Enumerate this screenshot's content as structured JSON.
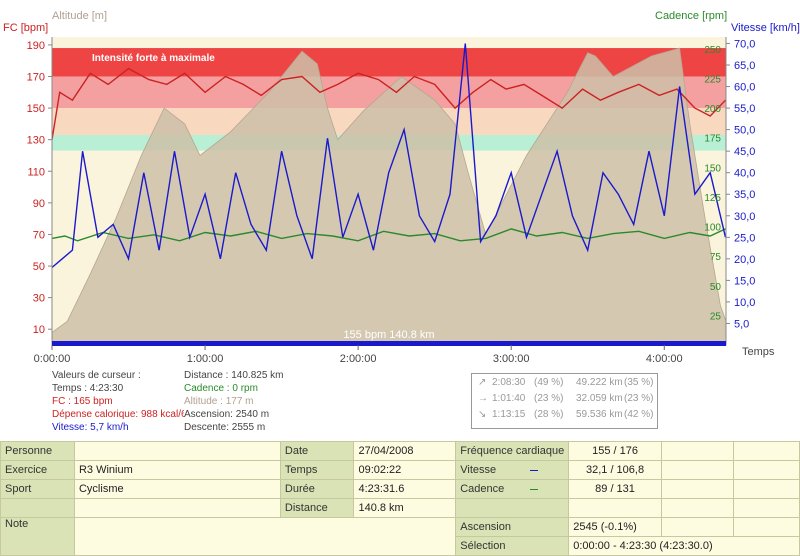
{
  "chart_data": {
    "type": "line",
    "x_ticks": [
      "0:00:00",
      "1:00:00",
      "2:00:00",
      "3:00:00",
      "4:00:00"
    ],
    "x_range_min": [
      0,
      264.2
    ],
    "xlabel": "Temps",
    "axes": {
      "fc": {
        "label": "FC [bpm]",
        "range": [
          0,
          195
        ],
        "ticks": [
          10,
          30,
          50,
          70,
          90,
          110,
          130,
          150,
          170,
          190
        ],
        "color": "#cc2222"
      },
      "altitude": {
        "label": "Altitude  [m]",
        "color": "#b0a090"
      },
      "cadence": {
        "label": "Cadence [rpm]",
        "range": [
          0,
          260
        ],
        "ticks": [
          25,
          50,
          75,
          100,
          125,
          150,
          175,
          200,
          225,
          250
        ],
        "color": "#2a8a2a"
      },
      "vitesse": {
        "label": "Vitesse [km/h]",
        "range": [
          0,
          71.5
        ],
        "ticks": [
          "5,0",
          "10,0",
          "15,0",
          "20,0",
          "25,0",
          "30,0",
          "35,0",
          "40,0",
          "45,0",
          "50,0",
          "55,0",
          "60,0",
          "65,0",
          "70,0"
        ],
        "color": "#1a1acc"
      }
    },
    "zones": [
      {
        "name": "Intensité forte à maximale",
        "fc_range": [
          170,
          188
        ],
        "color": "#ee4444"
      },
      {
        "name": "",
        "fc_range": [
          150,
          170
        ],
        "color": "#f5a0a0"
      },
      {
        "name": "",
        "fc_range": [
          133,
          150
        ],
        "color": "#f9d8c0"
      },
      {
        "name": "",
        "fc_range": [
          123,
          133
        ],
        "color": "#b9efd4"
      },
      {
        "name": "",
        "fc_range": [
          0,
          123
        ],
        "color": "#fbf4dc"
      }
    ],
    "series": [
      {
        "name": "Altitude",
        "axis": "fc",
        "color": "#cdbfa8",
        "x": [
          0,
          6,
          15,
          25,
          35,
          44,
          52,
          58,
          70,
          85,
          98,
          104,
          108,
          112,
          122,
          137,
          150,
          158,
          163,
          170,
          186,
          202,
          210,
          213,
          220,
          235,
          246,
          250,
          256,
          262,
          264.2
        ],
        "y": [
          8,
          15,
          45,
          80,
          120,
          150,
          140,
          120,
          135,
          160,
          186,
          178,
          150,
          130,
          148,
          170,
          155,
          140,
          110,
          70,
          120,
          160,
          185,
          183,
          170,
          183,
          188,
          140,
          80,
          25,
          15
        ]
      },
      {
        "name": "FC",
        "axis": "fc",
        "color": "#cc2222",
        "x": [
          0,
          3,
          8,
          15,
          22,
          30,
          38,
          45,
          52,
          60,
          68,
          75,
          82,
          90,
          98,
          105,
          112,
          120,
          128,
          135,
          142,
          150,
          158,
          165,
          172,
          178,
          185,
          192,
          200,
          208,
          215,
          222,
          230,
          238,
          245,
          252,
          258,
          264
        ],
        "y": [
          130,
          160,
          155,
          172,
          165,
          175,
          168,
          165,
          172,
          160,
          170,
          165,
          158,
          168,
          170,
          160,
          165,
          172,
          168,
          160,
          170,
          165,
          150,
          160,
          168,
          162,
          165,
          158,
          150,
          162,
          155,
          160,
          165,
          158,
          162,
          150,
          145,
          155
        ]
      },
      {
        "name": "Cadence",
        "axis": "cadence",
        "color": "#2a8a2a",
        "x": [
          0,
          5,
          10,
          20,
          30,
          40,
          50,
          60,
          70,
          80,
          90,
          100,
          110,
          120,
          130,
          140,
          150,
          160,
          170,
          180,
          190,
          200,
          210,
          220,
          230,
          240,
          250,
          258,
          264
        ],
        "y": [
          90,
          92,
          88,
          95,
          90,
          93,
          88,
          95,
          92,
          96,
          90,
          94,
          92,
          88,
          96,
          92,
          94,
          88,
          90,
          98,
          92,
          95,
          90,
          94,
          96,
          90,
          95,
          92,
          98
        ]
      },
      {
        "name": "Vitesse",
        "axis": "vitesse",
        "color": "#1a1acc",
        "x": [
          0,
          4,
          8,
          12,
          18,
          24,
          30,
          36,
          42,
          48,
          54,
          60,
          66,
          72,
          78,
          84,
          90,
          96,
          102,
          108,
          114,
          120,
          126,
          132,
          138,
          144,
          150,
          156,
          162,
          168,
          174,
          180,
          186,
          192,
          198,
          204,
          210,
          216,
          222,
          228,
          234,
          240,
          246,
          252,
          258,
          264
        ],
        "y": [
          18,
          20,
          22,
          45,
          25,
          28,
          20,
          40,
          22,
          45,
          25,
          35,
          20,
          40,
          28,
          22,
          45,
          30,
          20,
          48,
          25,
          35,
          22,
          40,
          50,
          30,
          24,
          35,
          70,
          24,
          30,
          40,
          25,
          35,
          45,
          30,
          22,
          40,
          35,
          28,
          45,
          30,
          60,
          35,
          40,
          25
        ]
      }
    ],
    "annotation": "155 bpm 140.8 km"
  },
  "cursor_info": {
    "col1": [
      "Valeurs de curseur :",
      "Temps : 4:23:30",
      "FC : 165 bpm",
      "Dépense calorique: 988 kcal/60",
      "Vitesse: 5,7 km/h"
    ],
    "col2": [
      "Distance : 140.825 km",
      "Cadence : 0 rpm",
      "Altitude : 177 m",
      "Ascension: 2540 m",
      "Descente: 2555 m"
    ]
  },
  "stats": [
    {
      "arrow": "↗",
      "time": "2:08:30",
      "pct1": "(49 %)",
      "dist": "49.222 km",
      "pct2": "(35 %)"
    },
    {
      "arrow": "→",
      "time": "1:01:40",
      "pct1": "(23 %)",
      "dist": "32.059 km",
      "pct2": "(23 %)"
    },
    {
      "arrow": "↘",
      "time": "1:13:15",
      "pct1": "(28 %)",
      "dist": "59.536 km",
      "pct2": "(42 %)"
    }
  ],
  "summary": {
    "personne_label": "Personne",
    "personne_value": "",
    "exercice_label": "Exercice",
    "exercice_value": "R3 Winium",
    "sport_label": "Sport",
    "sport_value": "Cyclisme",
    "note_label": "Note",
    "note_value": "",
    "date_label": "Date",
    "date_value": "27/04/2008",
    "temps_label": "Temps",
    "temps_value": "09:02:22",
    "duree_label": "Durée",
    "duree_value": "4:23:31.6",
    "distance_label": "Distance",
    "distance_value": "140.8 km",
    "fc_label": "Fréquence cardiaque",
    "fc_value": "155 / 176",
    "vitesse_label": "Vitesse",
    "vitesse_value": "32,1 / 106,8",
    "cadence_label": "Cadence",
    "cadence_value": "89 / 131",
    "ascension_label": "Ascension",
    "ascension_value": "2545 (-0.1%)",
    "selection_label": "Sélection",
    "selection_value": "0:00:00 - 4:23:30 (4:23:30.0)"
  }
}
